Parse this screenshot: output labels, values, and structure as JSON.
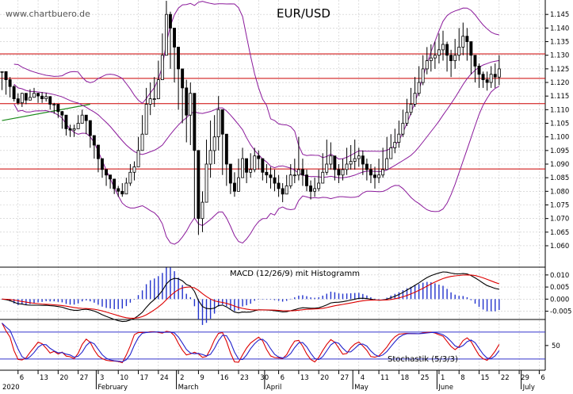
{
  "watermark": "www.chartbuero.de",
  "chart_data": {
    "type": "candlestick",
    "title": "EUR/USD",
    "colors": {
      "background": "#ffffff",
      "grid": "#c8c8c8",
      "price": "#000000",
      "bollinger": "#8b1a9b",
      "support_resistance": "#cc0000",
      "trendline": "#1a8a1a",
      "macd_line": "#000000",
      "signal_line": "#dd0000",
      "histogram": "#2233cc",
      "stoch_k": "#dd0000",
      "stoch_d": "#2222cc",
      "stoch_bound": "#3333cc"
    },
    "price_axis": {
      "ylim": [
        1.0565,
        1.1503
      ],
      "ticks": [
        1.06,
        1.065,
        1.07,
        1.075,
        1.08,
        1.085,
        1.09,
        1.095,
        1.1,
        1.105,
        1.11,
        1.115,
        1.12,
        1.125,
        1.13,
        1.135,
        1.14,
        1.145
      ],
      "tick_labels": [
        "1.060",
        "1.065",
        "1.070",
        "1.075",
        "1.080",
        "1.085",
        "1.090",
        "1.095",
        "1.100",
        "1.105",
        "1.110",
        "1.115",
        "1.120",
        "1.125",
        "1.130",
        "1.135",
        "1.140",
        "1.145"
      ],
      "horizontal_lines": [
        1.1305,
        1.1215,
        1.1122,
        1.0882
      ],
      "trendline": [
        [
          0,
          1.106
        ],
        [
          22,
          1.112
        ]
      ]
    },
    "macd": {
      "label": "MACD (12/26/9) mit Histogramm",
      "ylim": [
        -0.0081,
        0.0129
      ],
      "ticks": [
        -0.005,
        0.0,
        0.005,
        0.01
      ],
      "tick_labels": [
        "-0.005",
        "0.000",
        "0.005",
        "0.010"
      ]
    },
    "stochastic": {
      "label": "Stochastik (5/3/3)",
      "ylim": [
        -5,
        108
      ],
      "ticks": [
        50
      ],
      "tick_labels": [
        "50"
      ],
      "bounds": [
        80,
        20
      ]
    },
    "x_axis": {
      "day_labels": [
        "6",
        "13",
        "20",
        "27",
        "3",
        "10",
        "17",
        "24",
        "2",
        "9",
        "16",
        "23",
        "30",
        "6",
        "13",
        "20",
        "27",
        "4",
        "11",
        "18",
        "25",
        "1",
        "8",
        "15",
        "22",
        "29",
        "6"
      ],
      "day_index": [
        4,
        9,
        14,
        19,
        24,
        29,
        34,
        39,
        44,
        49,
        54,
        59,
        64,
        69,
        74,
        79,
        84,
        89,
        94,
        99,
        104,
        109,
        114,
        119,
        124,
        129,
        134
      ],
      "month_labels": [
        "2020",
        "February",
        "March",
        "April",
        "May",
        "June",
        "July"
      ],
      "month_index": [
        0,
        24,
        44,
        66,
        88,
        109,
        130
      ],
      "total_days": 136
    },
    "ohlc": [
      [
        1.124,
        1.123,
        1.1172
      ],
      [
        1.121,
        1.1225,
        1.1155
      ],
      [
        1.1185,
        1.122,
        1.1145
      ],
      [
        1.114,
        1.119,
        1.113
      ],
      [
        1.1125,
        1.116,
        1.1118
      ],
      [
        1.116,
        1.1162,
        1.111
      ],
      [
        1.1135,
        1.116,
        1.112
      ],
      [
        1.1145,
        1.1175,
        1.1135
      ],
      [
        1.116,
        1.118,
        1.115
      ],
      [
        1.115,
        1.1162,
        1.1125
      ],
      [
        1.114,
        1.1165,
        1.1125
      ],
      [
        1.1148,
        1.1162,
        1.113
      ],
      [
        1.112,
        1.115,
        1.11
      ],
      [
        1.112,
        1.1125,
        1.1085
      ],
      [
        1.1093,
        1.111,
        1.107
      ],
      [
        1.108,
        1.1095,
        1.103
      ],
      [
        1.103,
        1.106,
        1.1005
      ],
      [
        1.1025,
        1.1045,
        1.1
      ],
      [
        1.103,
        1.1045,
        1.1
      ],
      [
        1.105,
        1.108,
        1.104
      ],
      [
        1.108,
        1.11,
        1.105
      ],
      [
        1.106,
        1.108,
        1.101
      ],
      [
        1.1005,
        1.103,
        1.096
      ],
      [
        1.097,
        1.099,
        1.092
      ],
      [
        1.092,
        1.095,
        1.087
      ],
      [
        1.088,
        1.09,
        1.085
      ],
      [
        1.086,
        1.088,
        1.082
      ],
      [
        1.0845,
        1.086,
        1.081
      ],
      [
        1.081,
        1.084,
        1.079
      ],
      [
        1.08,
        1.082,
        1.078
      ],
      [
        1.079,
        1.083,
        1.078
      ],
      [
        1.083,
        1.085,
        1.08
      ],
      [
        1.087,
        1.09,
        1.082
      ],
      [
        1.089,
        1.091,
        1.084
      ],
      [
        1.095,
        1.1,
        1.089
      ],
      [
        1.101,
        1.108,
        1.096
      ],
      [
        1.112,
        1.118,
        1.106
      ],
      [
        1.114,
        1.12,
        1.108
      ],
      [
        1.114,
        1.122,
        1.111
      ],
      [
        1.121,
        1.128,
        1.116
      ],
      [
        1.13,
        1.138,
        1.125
      ],
      [
        1.145,
        1.15,
        1.135
      ],
      [
        1.14,
        1.146,
        1.125
      ],
      [
        1.133,
        1.138,
        1.12
      ],
      [
        1.125,
        1.13,
        1.11
      ],
      [
        1.118,
        1.124,
        1.105
      ],
      [
        1.108,
        1.121,
        1.098
      ],
      [
        1.116,
        1.12,
        1.097
      ],
      [
        1.095,
        1.1,
        1.07
      ],
      [
        1.07,
        1.089,
        1.064
      ],
      [
        1.076,
        1.08,
        1.065
      ],
      [
        1.09,
        1.099,
        1.078
      ],
      [
        1.095,
        1.106,
        1.085
      ],
      [
        1.1,
        1.108,
        1.09
      ],
      [
        1.11,
        1.115,
        1.095
      ],
      [
        1.101,
        1.106,
        1.086
      ],
      [
        1.09,
        1.095,
        1.082
      ],
      [
        1.083,
        1.09,
        1.079
      ],
      [
        1.08,
        1.087,
        1.078
      ],
      [
        1.085,
        1.092,
        1.082
      ],
      [
        1.092,
        1.096,
        1.085
      ],
      [
        1.087,
        1.09,
        1.083
      ],
      [
        1.088,
        1.094,
        1.085
      ],
      [
        1.093,
        1.096,
        1.087
      ],
      [
        1.092,
        1.095,
        1.088
      ],
      [
        1.087,
        1.092,
        1.084
      ],
      [
        1.086,
        1.09,
        1.083
      ],
      [
        1.085,
        1.089,
        1.081
      ],
      [
        1.083,
        1.088,
        1.08
      ],
      [
        1.081,
        1.086,
        1.078
      ],
      [
        1.079,
        1.083,
        1.076
      ],
      [
        1.082,
        1.086,
        1.079
      ],
      [
        1.086,
        1.09,
        1.081
      ],
      [
        1.086,
        1.092,
        1.083
      ],
      [
        1.088,
        1.1,
        1.084
      ],
      [
        1.086,
        1.092,
        1.082
      ],
      [
        1.082,
        1.088,
        1.08
      ],
      [
        1.08,
        1.084,
        1.077
      ],
      [
        1.081,
        1.085,
        1.078
      ],
      [
        1.083,
        1.088,
        1.08
      ],
      [
        1.087,
        1.094,
        1.083
      ],
      [
        1.09,
        1.099,
        1.086
      ],
      [
        1.093,
        1.098,
        1.088
      ],
      [
        1.088,
        1.092,
        1.084
      ],
      [
        1.086,
        1.09,
        1.083
      ],
      [
        1.088,
        1.092,
        1.084
      ],
      [
        1.09,
        1.096,
        1.086
      ],
      [
        1.091,
        1.097,
        1.088
      ],
      [
        1.092,
        1.099,
        1.088
      ],
      [
        1.093,
        1.096,
        1.089
      ],
      [
        1.09,
        1.095,
        1.086
      ],
      [
        1.088,
        1.092,
        1.084
      ],
      [
        1.086,
        1.09,
        1.083
      ],
      [
        1.085,
        1.089,
        1.081
      ],
      [
        1.086,
        1.092,
        1.083
      ],
      [
        1.088,
        1.096,
        1.085
      ],
      [
        1.092,
        1.1,
        1.088
      ],
      [
        1.096,
        1.101,
        1.092
      ],
      [
        1.098,
        1.103,
        1.094
      ],
      [
        1.101,
        1.106,
        1.096
      ],
      [
        1.105,
        1.11,
        1.1
      ],
      [
        1.109,
        1.114,
        1.104
      ],
      [
        1.112,
        1.118,
        1.108
      ],
      [
        1.116,
        1.122,
        1.111
      ],
      [
        1.12,
        1.126,
        1.115
      ],
      [
        1.125,
        1.13,
        1.119
      ],
      [
        1.128,
        1.133,
        1.123
      ],
      [
        1.129,
        1.134,
        1.124
      ],
      [
        1.13,
        1.135,
        1.125
      ],
      [
        1.132,
        1.138,
        1.127
      ],
      [
        1.134,
        1.139,
        1.128
      ],
      [
        1.13,
        1.135,
        1.124
      ],
      [
        1.128,
        1.132,
        1.122
      ],
      [
        1.13,
        1.136,
        1.125
      ],
      [
        1.133,
        1.14,
        1.128
      ],
      [
        1.137,
        1.142,
        1.13
      ],
      [
        1.135,
        1.14,
        1.128
      ],
      [
        1.13,
        1.135,
        1.123
      ],
      [
        1.126,
        1.13,
        1.12
      ],
      [
        1.123,
        1.127,
        1.118
      ],
      [
        1.121,
        1.124,
        1.118
      ],
      [
        1.12,
        1.124,
        1.117
      ],
      [
        1.123,
        1.126,
        1.118
      ],
      [
        1.122,
        1.127,
        1.118
      ],
      [
        1.125,
        1.13,
        1.119
      ]
    ]
  }
}
